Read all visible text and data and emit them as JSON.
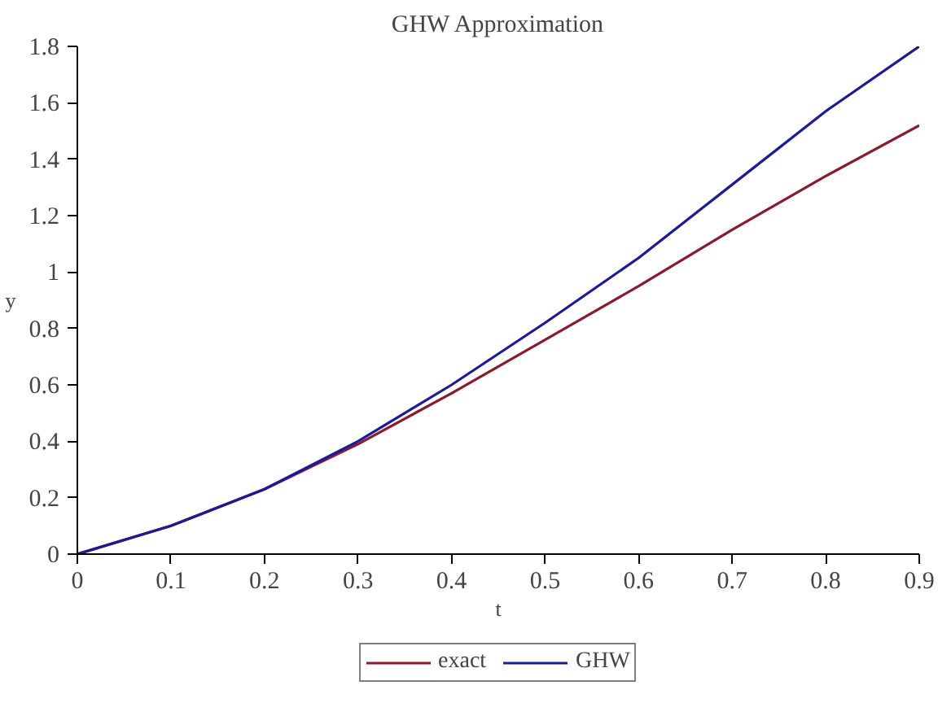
{
  "chart_data": {
    "type": "line",
    "title": "GHW Approximation",
    "xlabel": "t",
    "ylabel": "y",
    "x": [
      0,
      0.1,
      0.2,
      0.3,
      0.4,
      0.5,
      0.6,
      0.7,
      0.8,
      0.9
    ],
    "series": [
      {
        "name": "exact",
        "color": "#8b1a2a",
        "values": [
          0,
          0.1,
          0.23,
          0.39,
          0.57,
          0.76,
          0.95,
          1.15,
          1.34,
          1.52
        ]
      },
      {
        "name": "GHW",
        "color": "#1a1a9c",
        "values": [
          0,
          0.1,
          0.23,
          0.4,
          0.6,
          0.82,
          1.05,
          1.31,
          1.57,
          1.8
        ]
      }
    ],
    "xlim": [
      0,
      0.9
    ],
    "ylim": [
      0,
      1.8
    ],
    "xticks": [
      0,
      0.1,
      0.2,
      0.3,
      0.4,
      0.5,
      0.6,
      0.7,
      0.8,
      0.9
    ],
    "yticks": [
      0,
      0.2,
      0.4,
      0.6,
      0.8,
      1,
      1.2,
      1.4,
      1.6,
      1.8
    ],
    "grid": false,
    "legend": "bottom",
    "line_style": "solid",
    "marker": "none"
  }
}
